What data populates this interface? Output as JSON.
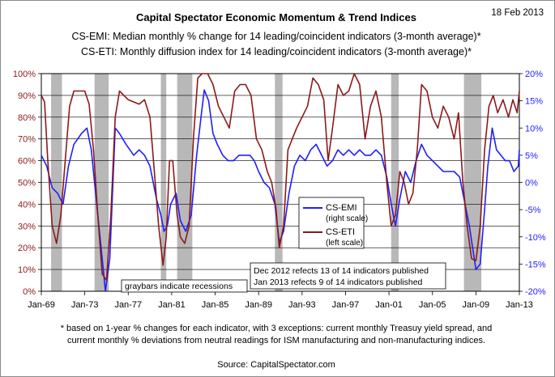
{
  "date": "18 Feb 2013",
  "title": "Capital Spectator Economic Momentum & Trend Indices",
  "subtitle1": "CS-EMI: Median monthly % change for 14 leading/coincident indicators (3-month average)*",
  "subtitle2": "CS-ETI: Monthly diffusion index for 14 leading/coincident indicators (3-month average)*",
  "footnote1": "* based on 1-year % changes for each indicator, with 3 exceptions: current monthly Treasuy yield spread, and",
  "footnote2": "current monthly % deviations from neutral readings for ISM manufacturing and non-manufacturing indices.",
  "source": "Source:  CapitalSpectator.com",
  "colors": {
    "emi": "#1f1fff",
    "eti": "#8b1a1a",
    "recession": "#b8b8b8",
    "grid": "#000000",
    "left_axis": "#8b1a1a",
    "right_axis": "#1f1fff"
  },
  "chart_data": {
    "type": "line",
    "x_ticks": [
      "Jan-69",
      "Jan-73",
      "Jan-77",
      "Jan-81",
      "Jan-85",
      "Jan-89",
      "Jan-93",
      "Jan-97",
      "Jan-01",
      "Jan-05",
      "Jan-09",
      "Jan-13"
    ],
    "xlim": [
      1969.0,
      2013.0
    ],
    "left_axis": {
      "ticks": [
        "0%",
        "10%",
        "20%",
        "30%",
        "40%",
        "50%",
        "60%",
        "70%",
        "80%",
        "90%",
        "100%"
      ],
      "ylim": [
        0,
        100
      ]
    },
    "right_axis": {
      "ticks": [
        "-20%",
        "-15%",
        "-10%",
        "-5%",
        "0%",
        "5%",
        "10%",
        "15%",
        "20%"
      ],
      "ylim": [
        -20,
        20
      ]
    },
    "grid": "horizontal",
    "recessions": [
      [
        1969.9,
        1970.9
      ],
      [
        1973.9,
        1975.2
      ],
      [
        1980.0,
        1980.5
      ],
      [
        1981.5,
        1982.9
      ],
      [
        1990.5,
        1991.2
      ],
      [
        2001.2,
        2001.9
      ],
      [
        2007.9,
        2009.5
      ]
    ],
    "annotations": {
      "recessions_note": "graybars indicate recessions",
      "publish_note1": "Dec 2012 refects 13 of 14 indicators published",
      "publish_note2": "Jan 2013 refects 9 of 14 indicators published"
    },
    "legend": {
      "position": "center",
      "emi_label": "CS-EMI",
      "emi_scale": "(right scale)",
      "eti_label": "CS-ETI",
      "eti_scale": "(left scale)"
    },
    "series": [
      {
        "name": "CS-EMI",
        "axis": "right",
        "points": [
          [
            1969.0,
            5
          ],
          [
            1969.5,
            3
          ],
          [
            1970.0,
            -1
          ],
          [
            1970.5,
            -2
          ],
          [
            1971.0,
            -4
          ],
          [
            1971.5,
            3
          ],
          [
            1972.0,
            7
          ],
          [
            1972.7,
            9
          ],
          [
            1973.2,
            10
          ],
          [
            1973.6,
            6
          ],
          [
            1974.0,
            -2
          ],
          [
            1974.5,
            -12
          ],
          [
            1974.9,
            -20
          ],
          [
            1975.3,
            -14
          ],
          [
            1975.8,
            10
          ],
          [
            1976.2,
            9
          ],
          [
            1976.8,
            7
          ],
          [
            1977.5,
            5
          ],
          [
            1978.0,
            6
          ],
          [
            1978.5,
            5
          ],
          [
            1979.0,
            3
          ],
          [
            1979.6,
            -3
          ],
          [
            1980.0,
            -6
          ],
          [
            1980.3,
            -9
          ],
          [
            1980.6,
            -8
          ],
          [
            1980.9,
            -4
          ],
          [
            1981.4,
            -2
          ],
          [
            1981.8,
            -7
          ],
          [
            1982.3,
            -9
          ],
          [
            1982.8,
            -6
          ],
          [
            1983.3,
            5
          ],
          [
            1983.7,
            12
          ],
          [
            1984.0,
            17
          ],
          [
            1984.4,
            15
          ],
          [
            1984.8,
            9
          ],
          [
            1985.2,
            7
          ],
          [
            1985.7,
            5
          ],
          [
            1986.2,
            4
          ],
          [
            1986.7,
            4
          ],
          [
            1987.2,
            5
          ],
          [
            1987.7,
            5
          ],
          [
            1988.2,
            5
          ],
          [
            1988.6,
            4
          ],
          [
            1989.0,
            2
          ],
          [
            1989.5,
            0
          ],
          [
            1990.0,
            -1
          ],
          [
            1990.5,
            -4
          ],
          [
            1990.9,
            -11
          ],
          [
            1991.3,
            -9
          ],
          [
            1991.8,
            -2
          ],
          [
            1992.3,
            3
          ],
          [
            1992.8,
            5
          ],
          [
            1993.3,
            4
          ],
          [
            1993.8,
            6
          ],
          [
            1994.3,
            7
          ],
          [
            1994.8,
            5
          ],
          [
            1995.3,
            3
          ],
          [
            1995.8,
            4
          ],
          [
            1996.3,
            6
          ],
          [
            1996.8,
            5
          ],
          [
            1997.3,
            6
          ],
          [
            1997.8,
            5
          ],
          [
            1998.3,
            6
          ],
          [
            1998.8,
            5
          ],
          [
            1999.3,
            5
          ],
          [
            1999.8,
            6
          ],
          [
            2000.3,
            5
          ],
          [
            2000.8,
            1
          ],
          [
            2001.2,
            -4
          ],
          [
            2001.6,
            -8
          ],
          [
            2002.0,
            -3
          ],
          [
            2002.5,
            2
          ],
          [
            2003.0,
            0
          ],
          [
            2003.5,
            4
          ],
          [
            2004.0,
            7
          ],
          [
            2004.5,
            5
          ],
          [
            2005.0,
            4
          ],
          [
            2005.5,
            3
          ],
          [
            2006.0,
            2
          ],
          [
            2006.5,
            2
          ],
          [
            2007.0,
            2
          ],
          [
            2007.5,
            1
          ],
          [
            2008.0,
            -4
          ],
          [
            2008.4,
            -8
          ],
          [
            2008.7,
            -12
          ],
          [
            2009.0,
            -16
          ],
          [
            2009.4,
            -15
          ],
          [
            2009.8,
            -5
          ],
          [
            2010.1,
            3
          ],
          [
            2010.5,
            10
          ],
          [
            2010.9,
            6
          ],
          [
            2011.3,
            5
          ],
          [
            2011.7,
            4
          ],
          [
            2012.1,
            4
          ],
          [
            2012.5,
            2
          ],
          [
            2012.9,
            3
          ],
          [
            2013.0,
            6
          ]
        ]
      },
      {
        "name": "CS-ETI",
        "axis": "left",
        "points": [
          [
            1969.0,
            90
          ],
          [
            1969.3,
            87
          ],
          [
            1969.6,
            60
          ],
          [
            1970.0,
            30
          ],
          [
            1970.4,
            22
          ],
          [
            1970.8,
            35
          ],
          [
            1971.2,
            60
          ],
          [
            1971.6,
            85
          ],
          [
            1972.0,
            92
          ],
          [
            1972.5,
            92
          ],
          [
            1973.0,
            92
          ],
          [
            1973.4,
            86
          ],
          [
            1973.8,
            65
          ],
          [
            1974.2,
            35
          ],
          [
            1974.6,
            8
          ],
          [
            1975.0,
            5
          ],
          [
            1975.4,
            35
          ],
          [
            1975.8,
            80
          ],
          [
            1976.2,
            92
          ],
          [
            1976.6,
            90
          ],
          [
            1977.0,
            88
          ],
          [
            1977.5,
            87
          ],
          [
            1978.0,
            86
          ],
          [
            1978.5,
            88
          ],
          [
            1979.0,
            80
          ],
          [
            1979.4,
            55
          ],
          [
            1979.8,
            30
          ],
          [
            1980.2,
            12
          ],
          [
            1980.5,
            25
          ],
          [
            1980.8,
            60
          ],
          [
            1981.1,
            60
          ],
          [
            1981.5,
            35
          ],
          [
            1981.8,
            25
          ],
          [
            1982.2,
            22
          ],
          [
            1982.6,
            30
          ],
          [
            1983.0,
            70
          ],
          [
            1983.4,
            98
          ],
          [
            1983.8,
            100
          ],
          [
            1984.3,
            100
          ],
          [
            1984.8,
            95
          ],
          [
            1985.3,
            85
          ],
          [
            1985.8,
            80
          ],
          [
            1986.3,
            75
          ],
          [
            1986.8,
            92
          ],
          [
            1987.3,
            95
          ],
          [
            1987.8,
            95
          ],
          [
            1988.3,
            90
          ],
          [
            1988.8,
            70
          ],
          [
            1989.3,
            65
          ],
          [
            1989.8,
            55
          ],
          [
            1990.2,
            50
          ],
          [
            1990.6,
            38
          ],
          [
            1990.9,
            20
          ],
          [
            1991.3,
            30
          ],
          [
            1991.7,
            65
          ],
          [
            1992.1,
            70
          ],
          [
            1992.5,
            75
          ],
          [
            1993.0,
            80
          ],
          [
            1993.5,
            85
          ],
          [
            1994.0,
            98
          ],
          [
            1994.5,
            95
          ],
          [
            1995.0,
            88
          ],
          [
            1995.4,
            60
          ],
          [
            1995.8,
            75
          ],
          [
            1996.3,
            95
          ],
          [
            1996.8,
            90
          ],
          [
            1997.3,
            92
          ],
          [
            1997.8,
            100
          ],
          [
            1998.3,
            95
          ],
          [
            1998.8,
            70
          ],
          [
            1999.3,
            85
          ],
          [
            1999.8,
            92
          ],
          [
            2000.3,
            80
          ],
          [
            2000.8,
            50
          ],
          [
            2001.2,
            30
          ],
          [
            2001.6,
            35
          ],
          [
            2002.0,
            55
          ],
          [
            2002.4,
            50
          ],
          [
            2002.8,
            40
          ],
          [
            2003.2,
            45
          ],
          [
            2003.6,
            65
          ],
          [
            2004.0,
            95
          ],
          [
            2004.5,
            92
          ],
          [
            2005.0,
            80
          ],
          [
            2005.5,
            75
          ],
          [
            2006.0,
            85
          ],
          [
            2006.5,
            80
          ],
          [
            2007.0,
            70
          ],
          [
            2007.4,
            82
          ],
          [
            2007.8,
            50
          ],
          [
            2008.2,
            30
          ],
          [
            2008.6,
            15
          ],
          [
            2009.0,
            14
          ],
          [
            2009.4,
            30
          ],
          [
            2009.8,
            65
          ],
          [
            2010.2,
            85
          ],
          [
            2010.6,
            90
          ],
          [
            2011.0,
            82
          ],
          [
            2011.5,
            88
          ],
          [
            2012.0,
            80
          ],
          [
            2012.4,
            88
          ],
          [
            2012.8,
            82
          ],
          [
            2013.0,
            92
          ]
        ]
      }
    ]
  }
}
